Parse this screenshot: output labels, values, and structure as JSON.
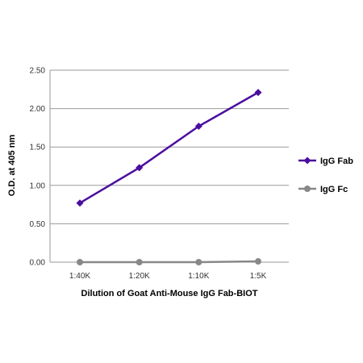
{
  "chart_data": {
    "type": "line",
    "title": "",
    "xlabel": "Dilution of Goat Anti-Mouse IgG Fab-BIOT",
    "ylabel": "O.D. at 405 nm",
    "categories": [
      "1:40K",
      "1:20K",
      "1:10K",
      "1:5K"
    ],
    "ylim": [
      0,
      2.5
    ],
    "yticks": [
      "0.00",
      "0.50",
      "1.00",
      "1.50",
      "2.00",
      "2.50"
    ],
    "grid": "horizontal",
    "legend_position": "right",
    "series": [
      {
        "name": "IgG Fab",
        "values": [
          0.77,
          1.23,
          1.77,
          2.21
        ],
        "color": "#4B0D9E",
        "marker": "diamond"
      },
      {
        "name": "IgG Fc",
        "values": [
          0.0,
          0.0,
          0.0,
          0.01
        ],
        "color": "#888888",
        "marker": "circle"
      }
    ]
  }
}
